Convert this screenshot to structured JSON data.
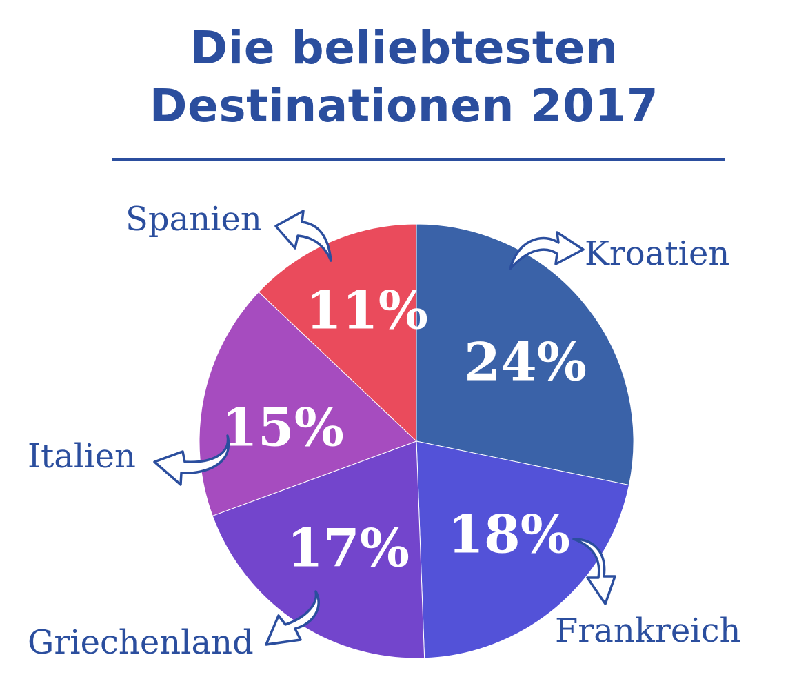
{
  "chart_data": {
    "type": "pie",
    "title": "Die beliebtesten Destinationen 2017",
    "title_lines": [
      "Die beliebtesten",
      "Destinationen 2017"
    ],
    "slices": [
      {
        "name": "Kroatien",
        "value": 24,
        "label": "24%",
        "color": "#3a62a8"
      },
      {
        "name": "Frankreich",
        "value": 18,
        "label": "18%",
        "color": "#5352d8"
      },
      {
        "name": "Griechenland",
        "value": 17,
        "label": "17%",
        "color": "#7345cc"
      },
      {
        "name": "Italien",
        "value": 15,
        "label": "15%",
        "color": "#a64cbf"
      },
      {
        "name": "Spanien",
        "value": 11,
        "label": "11%",
        "color": "#ea4b5c"
      }
    ],
    "accent_color": "#2b4e9e",
    "legend": "none"
  }
}
